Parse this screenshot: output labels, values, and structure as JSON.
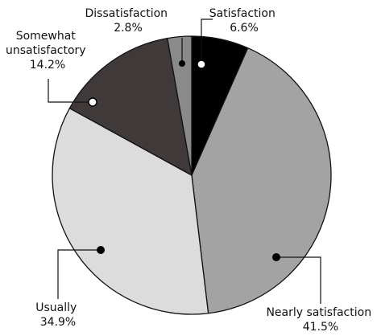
{
  "chart_data": {
    "type": "pie",
    "title": "",
    "slices": [
      {
        "name": "Satisfaction",
        "value": 6.6,
        "value_label": "6.6%",
        "color": "#000000"
      },
      {
        "name": "Nearly satisfaction",
        "value": 41.5,
        "value_label": "41.5%",
        "color": "#a3a3a3"
      },
      {
        "name": "Usually",
        "value": 34.9,
        "value_label": "34.9%",
        "color": "#dcdcdc"
      },
      {
        "name": "Somewhat unsatisfactory",
        "value": 14.2,
        "value_label": "14.2%",
        "color": "#3f3a39"
      },
      {
        "name": "Dissatisfaction",
        "value": 2.8,
        "value_label": "2.8%",
        "color": "#8a8a8a"
      }
    ],
    "label_lines": [
      [
        "Satisfaction",
        "6.6%"
      ],
      [
        "Nearly satisfaction",
        "41.5%"
      ],
      [
        "Usually",
        "34.9%"
      ],
      [
        "Somewhat",
        "unsatisfactory",
        "14.2%"
      ],
      [
        "Dissatisfaction",
        "2.8%"
      ]
    ],
    "start_angle_deg": 0,
    "direction": "clockwise",
    "legend": "none",
    "labels": "outside with leader lines"
  }
}
